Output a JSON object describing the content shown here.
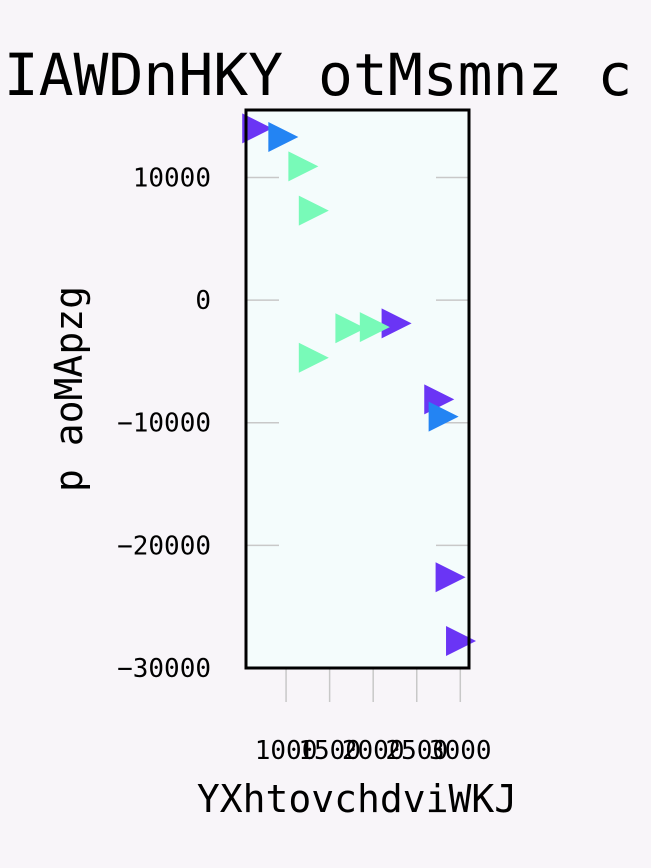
{
  "chart_data": {
    "type": "scatter",
    "title": "IAWDnHKY otMsmnz c",
    "xlabel": "YXhtovchdviWKJ",
    "ylabel": "p aoMApzg",
    "xlim": [
      540,
      3100
    ],
    "ylim": [
      -30000,
      15500
    ],
    "x_ticks": [
      1000,
      1500,
      2000,
      2500,
      3000
    ],
    "x_tick_labels": [
      "1000",
      "1500",
      "2000",
      "2500",
      "3000"
    ],
    "y_ticks": [
      -30000,
      -20000,
      -10000,
      0,
      10000
    ],
    "y_tick_labels": [
      "−30000",
      "−20000",
      "−10000",
      "0",
      "10000"
    ],
    "grid": false,
    "legend": "none",
    "marker": "triangle-right",
    "series": [
      {
        "color": "#6a35f5",
        "points": [
          {
            "x": 660,
            "y": 14000
          },
          {
            "x": 2260,
            "y": -1900
          },
          {
            "x": 2750,
            "y": -8100
          },
          {
            "x": 2880,
            "y": -22600
          },
          {
            "x": 3000,
            "y": -27800
          }
        ]
      },
      {
        "color": "#2384f3",
        "points": [
          {
            "x": 960,
            "y": 13300
          },
          {
            "x": 2800,
            "y": -9500
          }
        ]
      },
      {
        "color": "#78fab8",
        "points": [
          {
            "x": 1190,
            "y": 10900
          },
          {
            "x": 1310,
            "y": 7300
          },
          {
            "x": 1310,
            "y": -4700
          },
          {
            "x": 1730,
            "y": -2300
          },
          {
            "x": 2010,
            "y": -2200
          }
        ]
      }
    ],
    "colors": {
      "page_background": "#f8f5f9",
      "plot_background": "#f4fcfc",
      "frame": "#000000",
      "tick_lines": "#c8c8c8"
    }
  }
}
